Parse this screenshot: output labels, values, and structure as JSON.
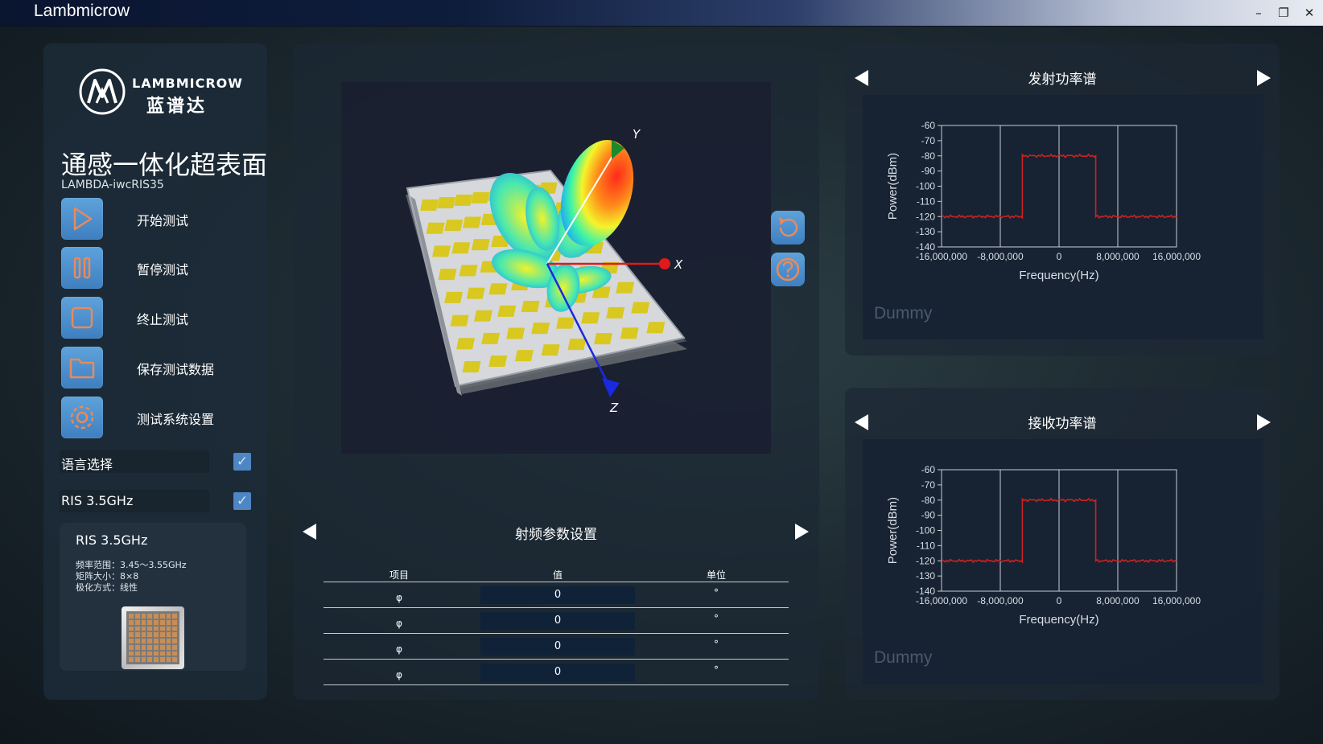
{
  "window": {
    "title": "Lambmicrow",
    "minimize_glyph": "–",
    "restore_glyph": "❐",
    "close_glyph": "✕"
  },
  "brand": {
    "name_en": "LAMBMICROW",
    "name_cn": "蓝谱达"
  },
  "product": {
    "title": "通感一体化超表面",
    "model": "LAMBDA-iwcRIS35"
  },
  "menu": [
    {
      "label": "开始测试",
      "icon": "play-icon"
    },
    {
      "label": "暂停测试",
      "icon": "pause-icon"
    },
    {
      "label": "终止测试",
      "icon": "stop-icon"
    },
    {
      "label": "保存测试数据",
      "icon": "folder-icon"
    },
    {
      "label": "测试系统设置",
      "icon": "gear-icon"
    }
  ],
  "options": {
    "language_label": "语言选择",
    "ris_label": "RIS 3.5GHz",
    "check_glyph": "✓"
  },
  "info_card": {
    "title": "RIS 3.5GHz",
    "lines": [
      "频率范围：3.45～3.55GHz",
      "矩阵大小：8×8",
      "极化方式：线性"
    ]
  },
  "viz": {
    "axis_y": "Y",
    "axis_x": "X",
    "axis_z": "Z"
  },
  "rf_params": {
    "title": "射频参数设置",
    "headers": [
      "项目",
      "值",
      "单位"
    ],
    "rows": [
      {
        "name": "φ",
        "value": "0",
        "unit": "°"
      },
      {
        "name": "φ",
        "value": "0",
        "unit": "°"
      },
      {
        "name": "φ",
        "value": "0",
        "unit": "°"
      },
      {
        "name": "φ",
        "value": "0",
        "unit": "°"
      }
    ]
  },
  "tx_chart": {
    "title": "发射功率谱",
    "watermark": "Dummy"
  },
  "rx_chart": {
    "title": "接收功率谱",
    "watermark": "Dummy"
  },
  "chart_data": [
    {
      "type": "line",
      "title": "发射功率谱",
      "xlabel": "Frequency(Hz)",
      "ylabel": "Power(dBm)",
      "xlim": [
        -16000000,
        16000000
      ],
      "ylim": [
        -140,
        -60
      ],
      "xticks": [
        "-16,000,000",
        "-8,000,000",
        "0",
        "8,000,000",
        "16,000,000"
      ],
      "yticks": [
        "-60",
        "-70",
        "-80",
        "-90",
        "-100",
        "-110",
        "-120",
        "-130",
        "-140"
      ],
      "grid": true,
      "color": "#cc2222",
      "series": [
        {
          "x": [
            -16000000,
            -5000000,
            -5000000,
            5000000,
            5000000,
            16000000
          ],
          "y": [
            -120,
            -120,
            -80,
            -80,
            -120,
            -120
          ]
        }
      ]
    },
    {
      "type": "line",
      "title": "接收功率谱",
      "xlabel": "Frequency(Hz)",
      "ylabel": "Power(dBm)",
      "xlim": [
        -16000000,
        16000000
      ],
      "ylim": [
        -140,
        -60
      ],
      "xticks": [
        "-16,000,000",
        "-8,000,000",
        "0",
        "8,000,000",
        "16,000,000"
      ],
      "yticks": [
        "-60",
        "-70",
        "-80",
        "-90",
        "-100",
        "-110",
        "-120",
        "-130",
        "-140"
      ],
      "grid": true,
      "color": "#cc2222",
      "series": [
        {
          "x": [
            -16000000,
            -5000000,
            -5000000,
            5000000,
            5000000,
            16000000
          ],
          "y": [
            -120,
            -120,
            -80,
            -80,
            -120,
            -120
          ]
        }
      ]
    }
  ]
}
